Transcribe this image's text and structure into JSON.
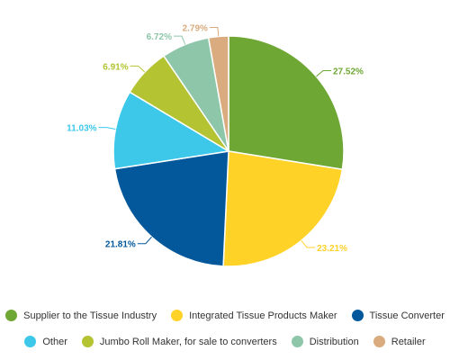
{
  "chart_data": {
    "type": "pie",
    "title": "",
    "slices": [
      {
        "label": "Supplier to the Tissue Industry",
        "value": 27.52,
        "display": "27.52%",
        "color": "#6ea733"
      },
      {
        "label": "Integrated Tissue Products Maker",
        "value": 23.21,
        "display": "23.21%",
        "color": "#ffd228"
      },
      {
        "label": "Tissue Converter",
        "value": 21.81,
        "display": "21.81%",
        "color": "#03589b"
      },
      {
        "label": "Other",
        "value": 11.03,
        "display": "11.03%",
        "color": "#3dc8ea"
      },
      {
        "label": "Jumbo Roll Maker, for sale to converters",
        "value": 6.91,
        "display": "6.91%",
        "color": "#b3c331"
      },
      {
        "label": "Distribution",
        "value": 6.72,
        "display": "6.72%",
        "color": "#8ec6aa"
      },
      {
        "label": "Retailer",
        "value": 2.79,
        "display": "2.79%",
        "color": "#d9ab7e"
      }
    ],
    "legend": {
      "placement": "bottom",
      "rows": [
        [
          0,
          1,
          2
        ],
        [
          3,
          4,
          5,
          6
        ]
      ]
    }
  }
}
